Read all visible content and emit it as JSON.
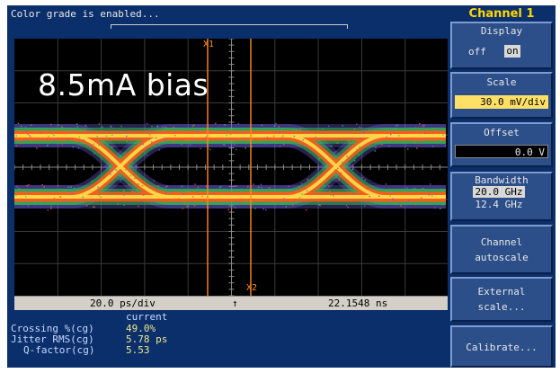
{
  "status": {
    "message": "Color grade is enabled..."
  },
  "overlay": {
    "annotation": "8.5mA bias"
  },
  "markers": {
    "x1": "X1",
    "x2": "X2"
  },
  "timebar": {
    "timebase": "20.0 ps/div",
    "arrow": "↑",
    "position": "22.1548 ns"
  },
  "measurements": {
    "header": "current",
    "rows": [
      {
        "label": "Crossing %(cg)",
        "value": "49.0%"
      },
      {
        "label": "Jitter RMS(cg)",
        "value": "5.78 ps"
      },
      {
        "label": "Q-factor(cg)",
        "value": "5.53"
      }
    ]
  },
  "menu": {
    "title": "Channel 1",
    "display": {
      "title": "Display",
      "off_label": "off",
      "on_label": "on",
      "selected": "on"
    },
    "scale": {
      "title": "Scale",
      "value": "30.0 mV/div"
    },
    "offset": {
      "title": "Offset",
      "value": "0.0 V"
    },
    "bandwidth": {
      "title": "Bandwidth",
      "option1": "20.0 GHz",
      "option2": "12.4 GHz",
      "selected": "20.0 GHz"
    },
    "autoscale": {
      "line1": "Channel",
      "line2": "autoscale"
    },
    "external_scale": {
      "line1": "External",
      "line2": "scale..."
    },
    "calibrate": {
      "label": "Calibrate..."
    }
  },
  "colors": {
    "screen_bg": "#0a2f6b",
    "graticule_bg": "#000000",
    "marker": "#ff8c1a",
    "eye_core": "#ffd84a",
    "eye_mid": "#ff5a1a",
    "eye_edge": "#2fbf4f",
    "eye_outer": "#6f5fe0"
  }
}
